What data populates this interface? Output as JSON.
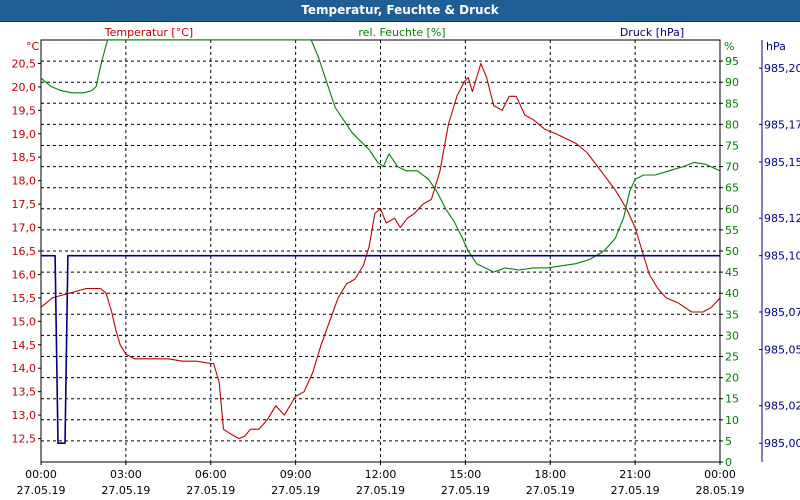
{
  "title": "Temperatur, Feuchte & Druck",
  "chart_data": {
    "type": "line",
    "title": "Temperatur, Feuchte & Druck",
    "x": {
      "ticks": [
        {
          "time": "00:00",
          "date": "27.05.19"
        },
        {
          "time": "03:00",
          "date": "27.05.19"
        },
        {
          "time": "06:00",
          "date": "27.05.19"
        },
        {
          "time": "09:00",
          "date": "27.05.19"
        },
        {
          "time": "12:00",
          "date": "27.05.19"
        },
        {
          "time": "15:00",
          "date": "27.05.19"
        },
        {
          "time": "18:00",
          "date": "27.05.19"
        },
        {
          "time": "21:00",
          "date": "27.05.19"
        },
        {
          "time": "00:00",
          "date": "28.05.19"
        }
      ]
    },
    "axes": {
      "temperature": {
        "label": "Temperatur [°C]",
        "unit": "°C",
        "color": "#c00000",
        "range": [
          12.0,
          21.0
        ],
        "ticks": [
          "20,5",
          "20,0",
          "19,5",
          "19,0",
          "18,5",
          "18,0",
          "17,5",
          "17,0",
          "16,5",
          "16,0",
          "15,5",
          "15,0",
          "14,5",
          "14,0",
          "13,5",
          "13,0",
          "12,5"
        ]
      },
      "humidity": {
        "label": "rel. Feuchte [%]",
        "unit": "%",
        "color": "#008000",
        "range": [
          0,
          100
        ],
        "ticks": [
          "95",
          "90",
          "85",
          "80",
          "75",
          "70",
          "65",
          "60",
          "55",
          "50",
          "45",
          "40",
          "35",
          "30",
          "25",
          "20",
          "15",
          "10",
          "5",
          "0"
        ]
      },
      "pressure": {
        "label": "Druck [hPa]",
        "unit": "hPa",
        "color": "#000080",
        "range": [
          984.99,
          985.215
        ],
        "ticks": [
          "985,20",
          "985,17",
          "985,15",
          "985,12",
          "985,10",
          "985,07",
          "985,05",
          "985,02",
          "985,00"
        ]
      }
    },
    "series": [
      {
        "name": "Temperatur [°C]",
        "axis": "temperature",
        "color": "#c00000",
        "points": [
          [
            0.0,
            15.3
          ],
          [
            0.2,
            15.4
          ],
          [
            0.4,
            15.5
          ],
          [
            0.7,
            15.55
          ],
          [
            1.0,
            15.6
          ],
          [
            1.3,
            15.65
          ],
          [
            1.6,
            15.7
          ],
          [
            1.9,
            15.7
          ],
          [
            2.1,
            15.7
          ],
          [
            2.3,
            15.6
          ],
          [
            2.5,
            15.2
          ],
          [
            2.65,
            14.8
          ],
          [
            2.8,
            14.5
          ],
          [
            3.0,
            14.3
          ],
          [
            3.3,
            14.2
          ],
          [
            3.6,
            14.2
          ],
          [
            4.0,
            14.2
          ],
          [
            4.5,
            14.2
          ],
          [
            5.0,
            14.15
          ],
          [
            5.5,
            14.15
          ],
          [
            6.0,
            14.1
          ],
          [
            6.1,
            14.1
          ],
          [
            6.3,
            13.7
          ],
          [
            6.45,
            12.7
          ],
          [
            6.7,
            12.6
          ],
          [
            7.0,
            12.5
          ],
          [
            7.2,
            12.55
          ],
          [
            7.4,
            12.7
          ],
          [
            7.7,
            12.7
          ],
          [
            8.0,
            12.9
          ],
          [
            8.3,
            13.2
          ],
          [
            8.6,
            13.0
          ],
          [
            9.0,
            13.4
          ],
          [
            9.3,
            13.5
          ],
          [
            9.6,
            13.9
          ],
          [
            9.9,
            14.5
          ],
          [
            10.2,
            15.0
          ],
          [
            10.5,
            15.5
          ],
          [
            10.8,
            15.8
          ],
          [
            11.1,
            15.9
          ],
          [
            11.4,
            16.2
          ],
          [
            11.6,
            16.6
          ],
          [
            11.8,
            17.3
          ],
          [
            12.0,
            17.4
          ],
          [
            12.2,
            17.1
          ],
          [
            12.5,
            17.2
          ],
          [
            12.7,
            17.0
          ],
          [
            12.95,
            17.2
          ],
          [
            13.2,
            17.3
          ],
          [
            13.5,
            17.5
          ],
          [
            13.8,
            17.6
          ],
          [
            14.1,
            18.2
          ],
          [
            14.4,
            19.2
          ],
          [
            14.7,
            19.8
          ],
          [
            14.95,
            20.1
          ],
          [
            15.1,
            20.2
          ],
          [
            15.25,
            19.9
          ],
          [
            15.45,
            20.3
          ],
          [
            15.55,
            20.5
          ],
          [
            15.75,
            20.2
          ],
          [
            16.0,
            19.6
          ],
          [
            16.3,
            19.5
          ],
          [
            16.55,
            19.8
          ],
          [
            16.8,
            19.8
          ],
          [
            17.1,
            19.4
          ],
          [
            17.4,
            19.3
          ],
          [
            17.8,
            19.1
          ],
          [
            18.2,
            19.0
          ],
          [
            18.55,
            18.9
          ],
          [
            18.9,
            18.8
          ],
          [
            19.3,
            18.6
          ],
          [
            19.8,
            18.2
          ],
          [
            20.3,
            17.8
          ],
          [
            20.7,
            17.4
          ],
          [
            21.0,
            17.0
          ],
          [
            21.25,
            16.5
          ],
          [
            21.5,
            16.0
          ],
          [
            21.8,
            15.7
          ],
          [
            22.1,
            15.5
          ],
          [
            22.5,
            15.4
          ],
          [
            23.0,
            15.2
          ],
          [
            23.4,
            15.2
          ],
          [
            23.7,
            15.3
          ],
          [
            24.0,
            15.5
          ]
        ]
      },
      {
        "name": "rel. Feuchte [%]",
        "axis": "humidity",
        "color": "#008000",
        "points": [
          [
            0.0,
            91
          ],
          [
            0.35,
            89
          ],
          [
            0.7,
            88
          ],
          [
            1.1,
            87.5
          ],
          [
            1.5,
            87.5
          ],
          [
            1.8,
            88
          ],
          [
            1.95,
            89
          ],
          [
            2.15,
            95
          ],
          [
            2.35,
            100
          ],
          [
            9.55,
            100
          ],
          [
            9.8,
            96
          ],
          [
            10.1,
            90
          ],
          [
            10.4,
            84
          ],
          [
            10.7,
            81
          ],
          [
            11.0,
            78
          ],
          [
            11.3,
            76
          ],
          [
            11.6,
            74
          ],
          [
            11.9,
            71
          ],
          [
            12.1,
            70
          ],
          [
            12.3,
            73
          ],
          [
            12.6,
            70
          ],
          [
            12.9,
            69
          ],
          [
            13.3,
            69
          ],
          [
            13.7,
            67
          ],
          [
            14.0,
            64
          ],
          [
            14.3,
            60
          ],
          [
            14.6,
            57
          ],
          [
            14.9,
            53
          ],
          [
            15.1,
            50
          ],
          [
            15.4,
            47
          ],
          [
            15.7,
            46
          ],
          [
            16.0,
            45
          ],
          [
            16.4,
            46
          ],
          [
            16.9,
            45.5
          ],
          [
            17.4,
            46
          ],
          [
            17.9,
            46
          ],
          [
            18.4,
            46.5
          ],
          [
            18.9,
            47
          ],
          [
            19.4,
            48
          ],
          [
            19.9,
            50
          ],
          [
            20.3,
            53
          ],
          [
            20.6,
            58
          ],
          [
            20.8,
            64
          ],
          [
            21.0,
            67
          ],
          [
            21.3,
            68
          ],
          [
            21.7,
            68
          ],
          [
            22.2,
            69
          ],
          [
            22.7,
            70
          ],
          [
            23.1,
            71
          ],
          [
            23.5,
            70.5
          ],
          [
            24.0,
            69
          ]
        ]
      },
      {
        "name": "Druck [hPa]",
        "axis": "pressure",
        "color": "#000080",
        "points": [
          [
            0.0,
            985.1
          ],
          [
            0.5,
            985.1
          ],
          [
            0.6,
            985.0
          ],
          [
            0.85,
            985.0
          ],
          [
            0.95,
            985.1
          ],
          [
            24.0,
            985.1
          ]
        ]
      }
    ],
    "grid": true
  }
}
